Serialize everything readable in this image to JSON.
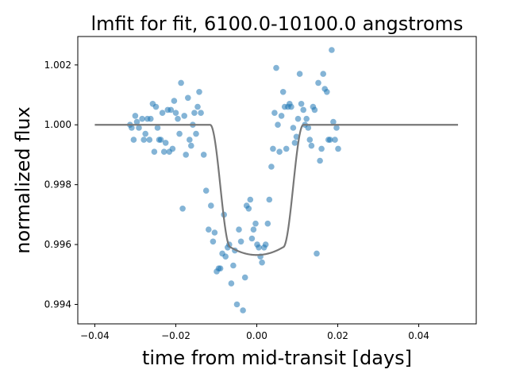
{
  "chart_data": {
    "type": "scatter",
    "title": "lmfit for fit, 6100.0-10100.0 angstroms",
    "xlabel": "time from mid-transit [days]",
    "ylabel": "normalized flux",
    "xlim": [
      -0.0442,
      0.0542
    ],
    "ylim": [
      0.99335,
      1.00295
    ],
    "xticks": [
      -0.04,
      -0.02,
      0.0,
      0.02,
      0.04
    ],
    "xtick_labels": [
      "−0.04",
      "−0.02",
      "0.00",
      "0.02",
      "0.04"
    ],
    "yticks": [
      0.994,
      0.996,
      0.998,
      1.0,
      1.002
    ],
    "ytick_labels": [
      "0.994",
      "0.996",
      "0.998",
      "1.000",
      "1.002"
    ],
    "grid": false,
    "series": [
      {
        "kind": "scatter",
        "color": "#1f77b4",
        "opacity": 0.55,
        "points": [
          [
            -0.0313,
            1.0
          ],
          [
            -0.0309,
            0.9999
          ],
          [
            -0.0304,
            0.9995
          ],
          [
            -0.03,
            1.0003
          ],
          [
            -0.0296,
            1.0001
          ],
          [
            -0.0291,
            0.9999
          ],
          [
            -0.0283,
            1.0002
          ],
          [
            -0.0279,
            0.9995
          ],
          [
            -0.0275,
            0.9997
          ],
          [
            -0.027,
            1.0002
          ],
          [
            -0.0265,
            0.9995
          ],
          [
            -0.0262,
            1.0002
          ],
          [
            -0.0257,
            1.0007
          ],
          [
            -0.0253,
            0.9991
          ],
          [
            -0.0249,
            1.0006
          ],
          [
            -0.0245,
            0.9999
          ],
          [
            -0.0241,
            0.9995
          ],
          [
            -0.0237,
            0.9995
          ],
          [
            -0.0233,
            1.0004
          ],
          [
            -0.0229,
            0.9991
          ],
          [
            -0.0225,
            0.9994
          ],
          [
            -0.022,
            1.0005
          ],
          [
            -0.0216,
            0.9991
          ],
          [
            -0.0212,
            1.0005
          ],
          [
            -0.0208,
            0.9992
          ],
          [
            -0.0204,
            1.0008
          ],
          [
            -0.02,
            1.0004
          ],
          [
            -0.0195,
            1.0002
          ],
          [
            -0.0191,
            0.9997
          ],
          [
            -0.0187,
            1.0014
          ],
          [
            -0.0183,
            0.9972
          ],
          [
            -0.0179,
            1.0003
          ],
          [
            -0.0175,
            0.999
          ],
          [
            -0.017,
            1.0009
          ],
          [
            -0.0166,
            0.9995
          ],
          [
            -0.0162,
            0.9993
          ],
          [
            -0.0158,
            1.0
          ],
          [
            -0.0154,
            1.0004
          ],
          [
            -0.015,
            0.9997
          ],
          [
            -0.0146,
            1.0006
          ],
          [
            -0.0142,
            1.0011
          ],
          [
            -0.0138,
            1.0004
          ],
          [
            -0.0131,
            0.999
          ],
          [
            -0.0125,
            0.9978
          ],
          [
            -0.0119,
            0.9965
          ],
          [
            -0.0113,
            0.9973
          ],
          [
            -0.0108,
            0.9961
          ],
          [
            -0.0104,
            0.9964
          ],
          [
            -0.0099,
            0.9951
          ],
          [
            -0.0094,
            0.9952
          ],
          [
            -0.009,
            0.9952
          ],
          [
            -0.0085,
            0.9957
          ],
          [
            -0.0081,
            0.997
          ],
          [
            -0.0077,
            0.9956
          ],
          [
            -0.0072,
            0.9959
          ],
          [
            -0.0068,
            0.996
          ],
          [
            -0.0063,
            0.9947
          ],
          [
            -0.0058,
            0.9953
          ],
          [
            -0.0054,
            0.9958
          ],
          [
            -0.0049,
            0.994
          ],
          [
            -0.0044,
            0.9965
          ],
          [
            -0.0039,
            0.9961
          ],
          [
            -0.0034,
            0.9938
          ],
          [
            -0.0029,
            0.9949
          ],
          [
            -0.0025,
            0.9973
          ],
          [
            -0.002,
            0.9972
          ],
          [
            -0.0016,
            0.9975
          ],
          [
            -0.0012,
            0.9962
          ],
          [
            -0.0008,
            0.9965
          ],
          [
            -0.0003,
            0.9967
          ],
          [
            0.0001,
            0.996
          ],
          [
            0.0005,
            0.9959
          ],
          [
            0.0009,
            0.9956
          ],
          [
            0.0013,
            0.9954
          ],
          [
            0.0018,
            0.9959
          ],
          [
            0.0022,
            0.996
          ],
          [
            0.0027,
            0.9967
          ],
          [
            0.0031,
            0.9975
          ],
          [
            0.0036,
            0.9986
          ],
          [
            0.004,
            0.9992
          ],
          [
            0.0044,
            1.0004
          ],
          [
            0.0048,
            1.0019
          ],
          [
            0.0052,
            1.0
          ],
          [
            0.0056,
            0.9991
          ],
          [
            0.0061,
            1.0003
          ],
          [
            0.0065,
            1.0011
          ],
          [
            0.0069,
            1.0006
          ],
          [
            0.0073,
            0.9992
          ],
          [
            0.0077,
            1.0006
          ],
          [
            0.0081,
            1.0007
          ],
          [
            0.0085,
            1.0006
          ],
          [
            0.009,
            0.9999
          ],
          [
            0.0094,
            0.9994
          ],
          [
            0.0098,
            0.9996
          ],
          [
            0.0102,
            1.0002
          ],
          [
            0.0106,
            1.0017
          ],
          [
            0.011,
            1.0007
          ],
          [
            0.0115,
            1.0005
          ],
          [
            0.0119,
            1.0
          ],
          [
            0.0123,
            1.0002
          ],
          [
            0.0127,
            0.9999
          ],
          [
            0.0131,
            0.9995
          ],
          [
            0.0135,
            0.9993
          ],
          [
            0.0139,
            1.0006
          ],
          [
            0.0143,
            1.0005
          ],
          [
            0.0148,
            0.9957
          ],
          [
            0.0152,
            1.0014
          ],
          [
            0.0156,
            0.9988
          ],
          [
            0.016,
            0.9992
          ],
          [
            0.0164,
            1.0017
          ],
          [
            0.0168,
            1.0012
          ],
          [
            0.0173,
            1.0011
          ],
          [
            0.0177,
            0.9995
          ],
          [
            0.0181,
            0.9995
          ],
          [
            0.0185,
            1.0025
          ],
          [
            0.0189,
            1.0001
          ],
          [
            0.0193,
            0.9995
          ],
          [
            0.0197,
            0.9999
          ],
          [
            0.0201,
            0.9992
          ]
        ]
      },
      {
        "kind": "line",
        "color": "#777777",
        "depth": 0.00435,
        "x_range": [
          -0.04,
          0.0497
        ],
        "ingress_start": -0.0115,
        "ingress_end": -0.0065
      }
    ]
  }
}
